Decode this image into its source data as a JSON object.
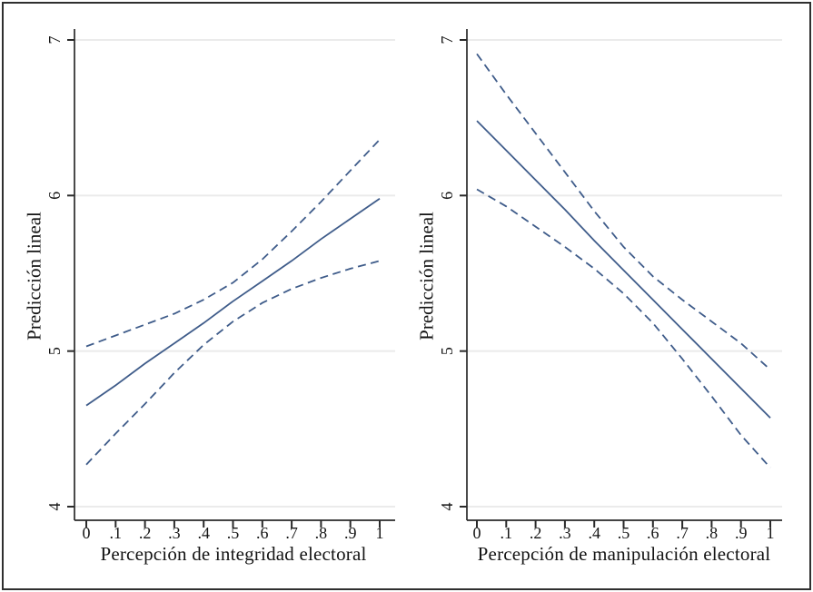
{
  "figure": {
    "background": "#ffffff",
    "border_color": "#2f2f2f",
    "line_color": "#3f5c8a",
    "grid_color": "#ebebeb",
    "axis_color": "#2a2a2a",
    "text_color": "#141414"
  },
  "chart_data": [
    {
      "type": "line",
      "title": "",
      "xlabel": "Percepción de integridad electoral",
      "ylabel": "Predicción lineal",
      "x": [
        0,
        0.1,
        0.2,
        0.3,
        0.4,
        0.5,
        0.6,
        0.7,
        0.8,
        0.9,
        1
      ],
      "xticklabels": [
        "0",
        ".1",
        ".2",
        ".3",
        ".4",
        ".5",
        ".6",
        ".7",
        ".8",
        ".9",
        "1"
      ],
      "yticks": [
        4,
        5,
        6,
        7
      ],
      "yticklabels": [
        "4",
        "5",
        "6",
        "7"
      ],
      "ylim": [
        4,
        7
      ],
      "xlim": [
        0,
        1
      ],
      "grid": true,
      "legend_position": "none",
      "series": [
        {
          "name": "prediccion-lineal",
          "style": "solid",
          "values": [
            4.65,
            4.78,
            4.92,
            5.05,
            5.18,
            5.32,
            5.45,
            5.58,
            5.72,
            5.85,
            5.98
          ]
        },
        {
          "name": "ic-superior",
          "style": "dashed",
          "values": [
            5.03,
            5.1,
            5.17,
            5.24,
            5.33,
            5.44,
            5.59,
            5.77,
            5.96,
            6.16,
            6.36
          ]
        },
        {
          "name": "ic-inferior",
          "style": "dashed",
          "values": [
            4.27,
            4.47,
            4.66,
            4.86,
            5.04,
            5.19,
            5.31,
            5.4,
            5.47,
            5.53,
            5.58
          ]
        }
      ]
    },
    {
      "type": "line",
      "title": "",
      "xlabel": "Percepción de manipulación electoral",
      "ylabel": "Predicción lineal",
      "x": [
        0,
        0.1,
        0.2,
        0.3,
        0.4,
        0.5,
        0.6,
        0.7,
        0.8,
        0.9,
        1
      ],
      "xticklabels": [
        "0",
        ".1",
        ".2",
        ".3",
        ".4",
        ".5",
        ".6",
        ".7",
        ".8",
        ".9",
        "1"
      ],
      "yticks": [
        4,
        5,
        6,
        7
      ],
      "yticklabels": [
        "4",
        "5",
        "6",
        "7"
      ],
      "ylim": [
        4,
        7
      ],
      "xlim": [
        0,
        1
      ],
      "grid": true,
      "legend_position": "none",
      "series": [
        {
          "name": "prediccion-lineal",
          "style": "solid",
          "values": [
            6.48,
            6.29,
            6.1,
            5.91,
            5.71,
            5.52,
            5.33,
            5.14,
            4.95,
            4.76,
            4.57
          ]
        },
        {
          "name": "ic-superior",
          "style": "dashed",
          "values": [
            6.91,
            6.65,
            6.4,
            6.15,
            5.9,
            5.67,
            5.48,
            5.33,
            5.19,
            5.05,
            4.88
          ]
        },
        {
          "name": "ic-inferior",
          "style": "dashed",
          "values": [
            6.04,
            5.93,
            5.8,
            5.67,
            5.53,
            5.37,
            5.18,
            4.95,
            4.71,
            4.46,
            4.25
          ]
        }
      ]
    }
  ]
}
